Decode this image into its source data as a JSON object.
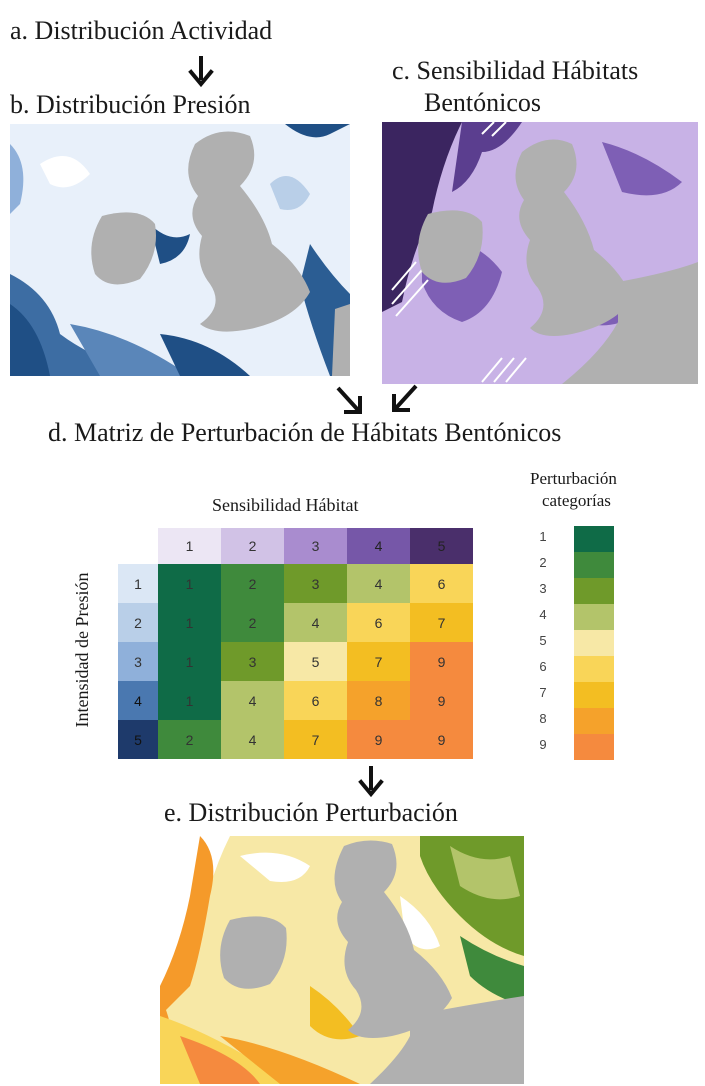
{
  "labels": {
    "a": "a. Distribución Actividad",
    "b": "b. Distribución Presión",
    "c_line1": "c. Sensibilidad Hábitats",
    "c_line2": "Bentónicos",
    "d": "d. Matriz de Perturbación de Hábitats Bentónicos",
    "e": "e. Distribución Perturbación"
  },
  "matrix": {
    "col_title": "Sensibilidad Hábitat",
    "row_title": "Intensidad de Presión",
    "col_headers": [
      "1",
      "2",
      "3",
      "4",
      "5"
    ],
    "row_headers": [
      "1",
      "2",
      "3",
      "4",
      "5"
    ],
    "cells": [
      [
        "1",
        "2",
        "3",
        "4",
        "6"
      ],
      [
        "1",
        "2",
        "4",
        "6",
        "7"
      ],
      [
        "1",
        "3",
        "5",
        "7",
        "9"
      ],
      [
        "1",
        "4",
        "6",
        "8",
        "9"
      ],
      [
        "2",
        "4",
        "7",
        "9",
        "9"
      ]
    ],
    "col_colors": [
      "#ece6f4",
      "#d1c2e6",
      "#a98ccf",
      "#7657a8",
      "#4a2f6b"
    ],
    "row_colors": [
      "#dbe7f5",
      "#b9cfe8",
      "#8fb0da",
      "#4a78b0",
      "#1e3a6b"
    ]
  },
  "legend": {
    "title_line1": "Perturbación",
    "title_line2": "categorías",
    "items": [
      {
        "label": "1",
        "color": "#0f6b47"
      },
      {
        "label": "2",
        "color": "#3f8a3c"
      },
      {
        "label": "3",
        "color": "#6f9a2a"
      },
      {
        "label": "4",
        "color": "#b3c46a"
      },
      {
        "label": "5",
        "color": "#f7e8a6"
      },
      {
        "label": "6",
        "color": "#f9d558"
      },
      {
        "label": "7",
        "color": "#f3be22"
      },
      {
        "label": "8",
        "color": "#f5a22b"
      },
      {
        "label": "9",
        "color": "#f58a3e"
      }
    ]
  },
  "colors": {
    "land": "#b0b0b0",
    "pressure_light": "#e8f0fa",
    "pressure_dark": "#1f4f85",
    "sensitivity_light": "#c8b2e6",
    "sensitivity_dark": "#3b2560",
    "disturbance_orange": "#f59a2a"
  }
}
